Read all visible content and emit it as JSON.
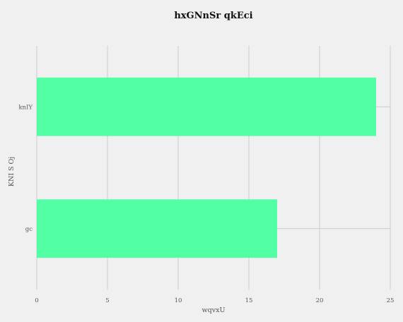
{
  "chart_data": {
    "type": "bar",
    "orientation": "horizontal",
    "title": "hxGNnSr qkEci",
    "xlabel": "wqvxU",
    "ylabel": "KNI S Oj",
    "categories": [
      "knIY",
      "gc"
    ],
    "values": [
      24,
      17
    ],
    "xlim": [
      0,
      25
    ],
    "xticks": [
      0,
      5,
      10,
      15,
      20,
      25
    ],
    "grid": true,
    "bar_color": "#52ffa5",
    "background_color": "#f0f0f0"
  }
}
